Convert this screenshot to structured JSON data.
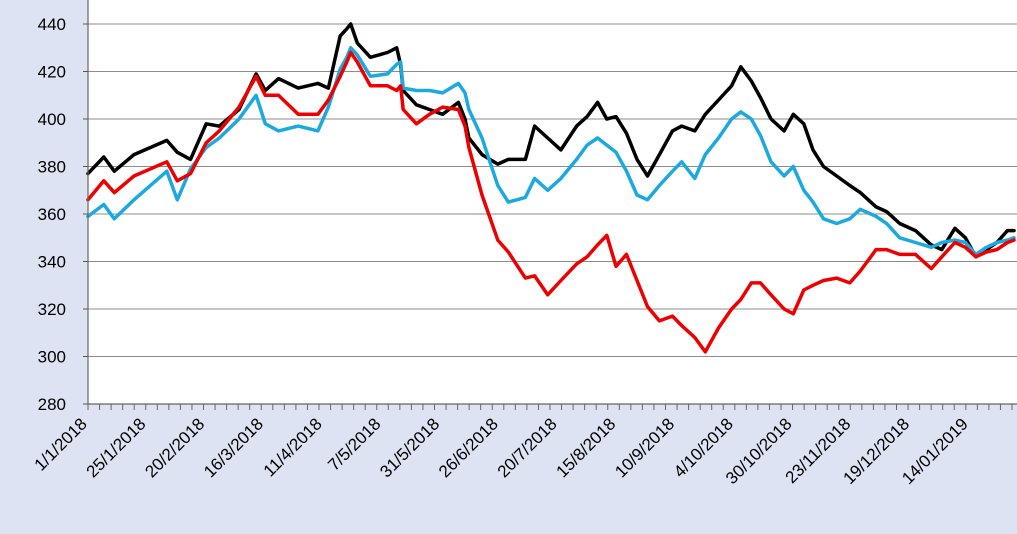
{
  "chart_data": {
    "type": "line",
    "title": "",
    "xlabel": "",
    "ylabel": "",
    "ylim": [
      280,
      440
    ],
    "y_ticks": [
      "280",
      "300",
      "320",
      "340",
      "360",
      "380",
      "400",
      "420",
      "440"
    ],
    "x_tick_labels": [
      "1/1/2018",
      "25/1/2018",
      "20/2/2018",
      "16/3/2018",
      "11/4/2018",
      "7/5/2018",
      "31/5/2018",
      "26/6/2018",
      "20/7/2018",
      "15/8/2018",
      "10/9/2018",
      "4/10/2018",
      "30/10/2018",
      "23/11/2018",
      "19/12/2018",
      "14/01/2019"
    ],
    "grid": "horizontal",
    "legend": "none",
    "series": [
      {
        "color": "#000000",
        "points": [
          [
            0,
            377
          ],
          [
            12,
            384
          ],
          [
            20,
            378
          ],
          [
            35,
            385
          ],
          [
            60,
            391
          ],
          [
            68,
            386
          ],
          [
            78,
            383
          ],
          [
            90,
            398
          ],
          [
            100,
            397
          ],
          [
            115,
            404
          ],
          [
            128,
            419
          ],
          [
            135,
            412
          ],
          [
            145,
            417
          ],
          [
            160,
            413
          ],
          [
            175,
            415
          ],
          [
            183,
            413
          ],
          [
            192,
            435
          ],
          [
            197,
            438
          ],
          [
            200,
            440
          ],
          [
            205,
            432
          ],
          [
            215,
            426
          ],
          [
            228,
            428
          ],
          [
            235,
            430
          ],
          [
            238,
            423
          ],
          [
            240,
            412
          ],
          [
            250,
            406
          ],
          [
            260,
            404
          ],
          [
            270,
            402
          ],
          [
            282,
            407
          ],
          [
            287,
            400
          ],
          [
            290,
            392
          ],
          [
            300,
            385
          ],
          [
            312,
            381
          ],
          [
            320,
            383
          ],
          [
            333,
            383
          ],
          [
            340,
            397
          ],
          [
            350,
            392
          ],
          [
            360,
            387
          ],
          [
            372,
            397
          ],
          [
            380,
            401
          ],
          [
            388,
            407
          ],
          [
            395,
            400
          ],
          [
            402,
            401
          ],
          [
            410,
            394
          ],
          [
            418,
            383
          ],
          [
            426,
            376
          ],
          [
            435,
            385
          ],
          [
            445,
            395
          ],
          [
            452,
            397
          ],
          [
            462,
            395
          ],
          [
            470,
            402
          ],
          [
            480,
            408
          ],
          [
            490,
            414
          ],
          [
            497,
            422
          ],
          [
            505,
            416
          ],
          [
            512,
            409
          ],
          [
            520,
            400
          ],
          [
            530,
            395
          ],
          [
            537,
            402
          ],
          [
            545,
            398
          ],
          [
            552,
            387
          ],
          [
            560,
            380
          ],
          [
            570,
            376
          ],
          [
            580,
            372
          ],
          [
            588,
            369
          ],
          [
            600,
            363
          ],
          [
            608,
            361
          ],
          [
            618,
            356
          ],
          [
            630,
            353
          ],
          [
            642,
            347
          ],
          [
            650,
            345
          ],
          [
            660,
            354
          ],
          [
            668,
            350
          ],
          [
            676,
            342
          ],
          [
            684,
            345
          ],
          [
            692,
            348
          ],
          [
            700,
            353
          ],
          [
            705,
            353
          ]
        ]
      },
      {
        "color": "#1ba9e0",
        "points": [
          [
            0,
            359
          ],
          [
            12,
            364
          ],
          [
            20,
            358
          ],
          [
            35,
            366
          ],
          [
            60,
            378
          ],
          [
            68,
            366
          ],
          [
            78,
            379
          ],
          [
            90,
            388
          ],
          [
            100,
            392
          ],
          [
            115,
            400
          ],
          [
            128,
            410
          ],
          [
            135,
            398
          ],
          [
            145,
            395
          ],
          [
            160,
            397
          ],
          [
            175,
            395
          ],
          [
            183,
            405
          ],
          [
            192,
            421
          ],
          [
            197,
            426
          ],
          [
            200,
            430
          ],
          [
            205,
            427
          ],
          [
            215,
            418
          ],
          [
            228,
            419
          ],
          [
            235,
            423
          ],
          [
            238,
            424
          ],
          [
            240,
            413
          ],
          [
            250,
            412
          ],
          [
            260,
            412
          ],
          [
            270,
            411
          ],
          [
            282,
            415
          ],
          [
            287,
            411
          ],
          [
            290,
            404
          ],
          [
            300,
            392
          ],
          [
            312,
            372
          ],
          [
            320,
            365
          ],
          [
            333,
            367
          ],
          [
            340,
            375
          ],
          [
            350,
            370
          ],
          [
            360,
            375
          ],
          [
            372,
            383
          ],
          [
            380,
            389
          ],
          [
            388,
            392
          ],
          [
            395,
            389
          ],
          [
            402,
            386
          ],
          [
            410,
            378
          ],
          [
            418,
            368
          ],
          [
            426,
            366
          ],
          [
            435,
            372
          ],
          [
            445,
            378
          ],
          [
            452,
            382
          ],
          [
            462,
            375
          ],
          [
            470,
            385
          ],
          [
            480,
            392
          ],
          [
            490,
            400
          ],
          [
            497,
            403
          ],
          [
            505,
            400
          ],
          [
            512,
            393
          ],
          [
            520,
            382
          ],
          [
            530,
            376
          ],
          [
            537,
            380
          ],
          [
            545,
            370
          ],
          [
            552,
            365
          ],
          [
            560,
            358
          ],
          [
            570,
            356
          ],
          [
            580,
            358
          ],
          [
            588,
            362
          ],
          [
            600,
            359
          ],
          [
            608,
            356
          ],
          [
            618,
            350
          ],
          [
            630,
            348
          ],
          [
            642,
            346
          ],
          [
            650,
            348
          ],
          [
            660,
            349
          ],
          [
            668,
            348
          ],
          [
            676,
            343
          ],
          [
            684,
            346
          ],
          [
            692,
            348
          ],
          [
            700,
            349
          ],
          [
            705,
            350
          ]
        ]
      },
      {
        "color": "#ee0000",
        "points": [
          [
            0,
            366
          ],
          [
            12,
            374
          ],
          [
            20,
            369
          ],
          [
            35,
            376
          ],
          [
            60,
            382
          ],
          [
            68,
            374
          ],
          [
            78,
            377
          ],
          [
            90,
            390
          ],
          [
            100,
            395
          ],
          [
            115,
            405
          ],
          [
            128,
            418
          ],
          [
            135,
            410
          ],
          [
            145,
            410
          ],
          [
            160,
            402
          ],
          [
            175,
            402
          ],
          [
            183,
            408
          ],
          [
            192,
            418
          ],
          [
            197,
            424
          ],
          [
            200,
            428
          ],
          [
            205,
            424
          ],
          [
            215,
            414
          ],
          [
            228,
            414
          ],
          [
            235,
            412
          ],
          [
            238,
            414
          ],
          [
            240,
            404
          ],
          [
            250,
            398
          ],
          [
            260,
            402
          ],
          [
            270,
            405
          ],
          [
            282,
            404
          ],
          [
            287,
            397
          ],
          [
            290,
            388
          ],
          [
            300,
            368
          ],
          [
            312,
            349
          ],
          [
            320,
            344
          ],
          [
            333,
            333
          ],
          [
            340,
            334
          ],
          [
            350,
            326
          ],
          [
            360,
            332
          ],
          [
            372,
            339
          ],
          [
            380,
            342
          ],
          [
            388,
            347
          ],
          [
            395,
            351
          ],
          [
            402,
            338
          ],
          [
            410,
            343
          ],
          [
            418,
            332
          ],
          [
            426,
            321
          ],
          [
            435,
            315
          ],
          [
            445,
            317
          ],
          [
            452,
            313
          ],
          [
            462,
            308
          ],
          [
            470,
            302
          ],
          [
            480,
            312
          ],
          [
            490,
            320
          ],
          [
            497,
            324
          ],
          [
            505,
            331
          ],
          [
            512,
            331
          ],
          [
            520,
            326
          ],
          [
            530,
            320
          ],
          [
            537,
            318
          ],
          [
            545,
            328
          ],
          [
            552,
            330
          ],
          [
            560,
            332
          ],
          [
            570,
            333
          ],
          [
            580,
            331
          ],
          [
            588,
            336
          ],
          [
            600,
            345
          ],
          [
            608,
            345
          ],
          [
            618,
            343
          ],
          [
            630,
            343
          ],
          [
            642,
            337
          ],
          [
            650,
            342
          ],
          [
            660,
            348
          ],
          [
            668,
            346
          ],
          [
            676,
            342
          ],
          [
            684,
            344
          ],
          [
            692,
            345
          ],
          [
            700,
            348
          ],
          [
            705,
            349
          ]
        ]
      }
    ]
  }
}
